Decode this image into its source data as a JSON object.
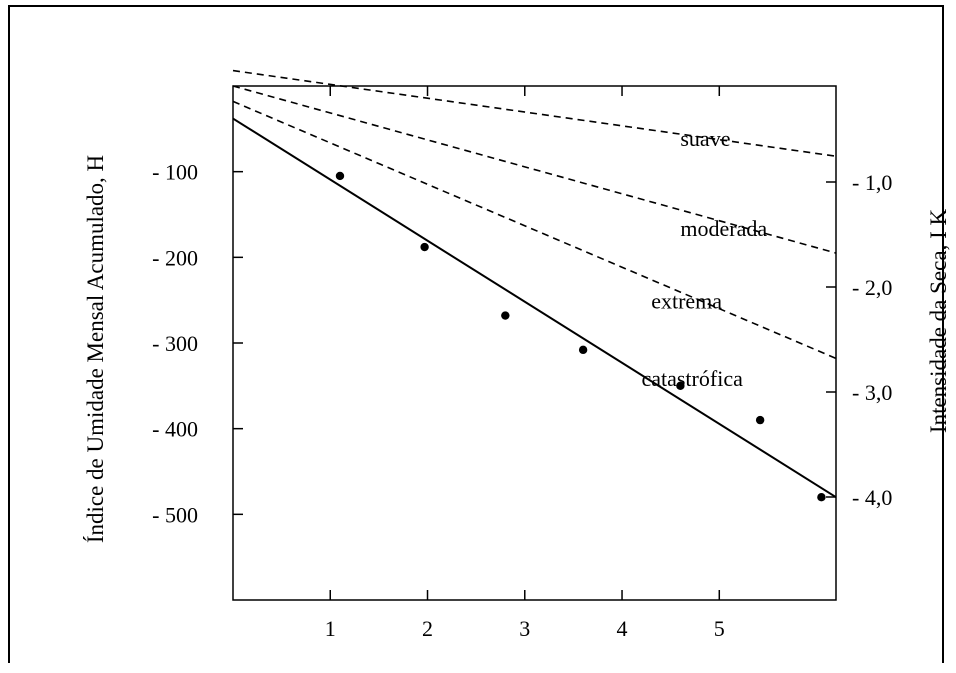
{
  "chart_data": {
    "type": "line",
    "title": "",
    "xlabel": "",
    "ylabel": "Índice de Umidade Mensal Acumulado, H",
    "y2label": "Intensidade da Seca, I K",
    "xlim": [
      0,
      6.2
    ],
    "ylim": [
      -600,
      0
    ],
    "y2lim": [
      -4.0,
      -1.0
    ],
    "x_ticks": [
      1,
      2,
      3,
      4,
      5
    ],
    "x_tick_labels": [
      "1",
      "2",
      "3",
      "4",
      "5"
    ],
    "y_ticks": [
      -100,
      -200,
      -300,
      -400,
      -500
    ],
    "y_tick_labels": [
      "- 100",
      "- 200",
      "- 300",
      "- 400",
      "- 500"
    ],
    "y2_ticks": [
      -1.0,
      -2.0,
      -3.0,
      -4.0
    ],
    "y2_tick_labels": [
      "- 1,0",
      "- 2,0",
      "- 3,0",
      "- 4,0"
    ],
    "grid": false,
    "legend": "none",
    "series": [
      {
        "name": "suave",
        "style": "dashed",
        "x": [
          0,
          6.2
        ],
        "y": [
          18,
          -82
        ]
      },
      {
        "name": "moderada",
        "style": "dashed",
        "x": [
          0,
          6.2
        ],
        "y": [
          0,
          -195
        ]
      },
      {
        "name": "extrema",
        "style": "dashed",
        "x": [
          0,
          6.2
        ],
        "y": [
          -18,
          -318
        ]
      },
      {
        "name": "catastrófica",
        "style": "solid",
        "x": [
          0,
          6.2
        ],
        "y": [
          -38,
          -480
        ]
      }
    ],
    "points": {
      "x": [
        1.1,
        1.97,
        2.8,
        3.6,
        4.6,
        5.42,
        6.05
      ],
      "y": [
        -105,
        -188,
        -268,
        -308,
        -350,
        -390,
        -480
      ]
    },
    "annotations": [
      {
        "text": "suave",
        "x": 4.6,
        "y": -70
      },
      {
        "text": "moderada",
        "x": 4.6,
        "y": -175
      },
      {
        "text": "extrema",
        "x": 4.3,
        "y": -260
      },
      {
        "text": "catastrófica",
        "x": 4.2,
        "y": -350
      }
    ],
    "colors": {
      "line": "#000000",
      "background": "#ffffff"
    }
  }
}
